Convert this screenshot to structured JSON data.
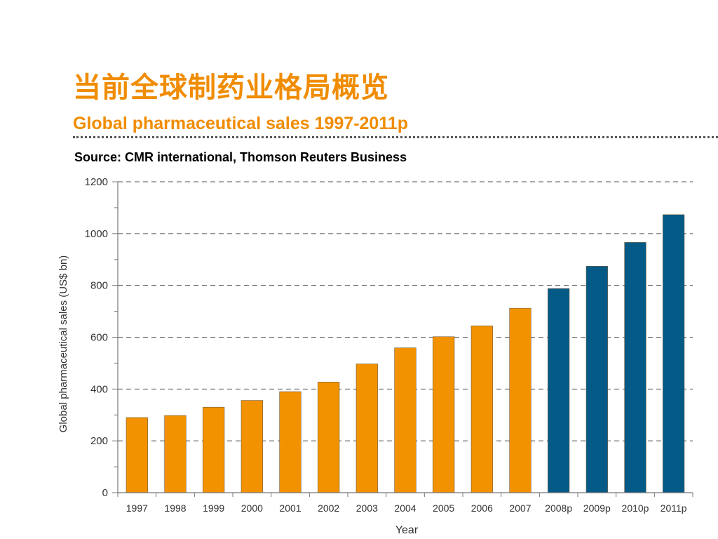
{
  "header": {
    "title_cn": "当前全球制药业格局概览",
    "subtitle": "Global pharmaceutical sales 1997-2011p",
    "source": "Source: CMR international, Thomson Reuters Business"
  },
  "colors": {
    "accent": "#f08c00",
    "actual_bar": "#f39200",
    "projected_bar": "#035a87"
  },
  "chart_data": {
    "type": "bar",
    "categories": [
      "1997",
      "1998",
      "1999",
      "2000",
      "2001",
      "2002",
      "2003",
      "2004",
      "2005",
      "2006",
      "2007",
      "2008p",
      "2009p",
      "2010p",
      "2011p"
    ],
    "values": [
      290,
      298,
      330,
      356,
      390,
      427,
      497,
      559,
      602,
      644,
      712,
      788,
      874,
      966,
      1073
    ],
    "projected_from_index": 11,
    "xlabel": "Year",
    "ylabel": "Global pharmaceutical sales (US$ bn)",
    "ylim": [
      0,
      1200
    ],
    "yticks": [
      0,
      200,
      400,
      600,
      800,
      1000,
      1200
    ],
    "grid": "dashed horizontal",
    "legend": "none"
  }
}
